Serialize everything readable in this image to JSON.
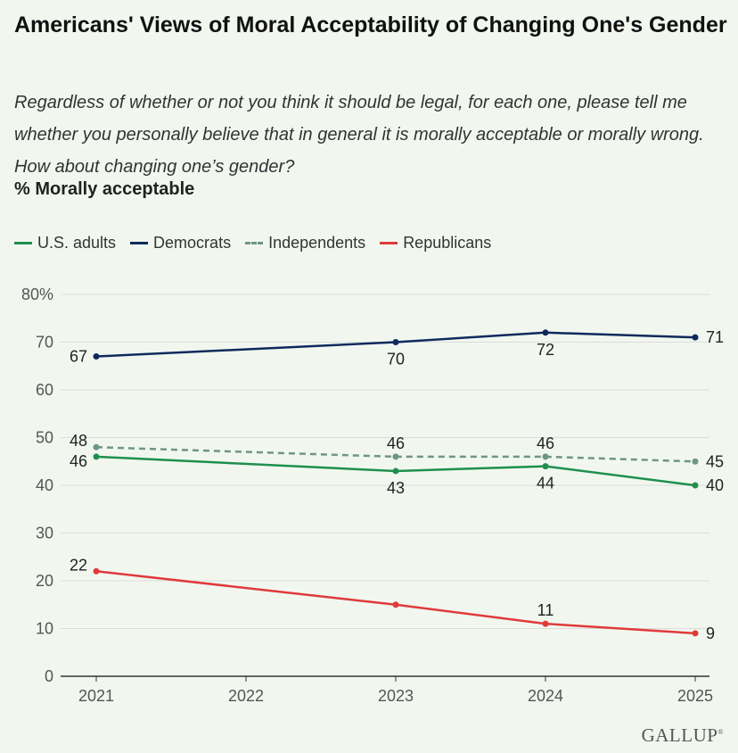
{
  "header": {
    "title": "Americans' Views of Moral Acceptability of Changing One's Gender",
    "subtitle": "Regardless of whether or not you think it should be legal, for each one, please tell me whether you personally believe that in general it is morally acceptable or morally wrong. How about changing one’s gender?",
    "measure": "% Morally acceptable"
  },
  "brand": "GALLUP",
  "colors": {
    "us_adults": "#1f8f4e",
    "democrats": "#0f2a5c",
    "independents": "#6f9586",
    "republicans": "#e03a3a",
    "grid": "#dcdcdc",
    "axis": "#333333"
  },
  "chart_data": {
    "type": "line",
    "title": "Americans' Views of Moral Acceptability of Changing One's Gender",
    "ylabel": "% Morally acceptable",
    "xlabel": "",
    "x": [
      2021,
      2022,
      2023,
      2024,
      2025
    ],
    "x_tick_labels": [
      "2021",
      "2022",
      "2023",
      "2024",
      "2025"
    ],
    "ylim": [
      0,
      80
    ],
    "y_ticks": [
      0,
      10,
      20,
      30,
      40,
      50,
      60,
      70,
      80
    ],
    "y_tick_labels": [
      "0",
      "10",
      "20",
      "30",
      "40",
      "50",
      "60",
      "70",
      "80%"
    ],
    "grid": true,
    "legend_position": "top-left",
    "series": [
      {
        "key": "us_adults",
        "name": "U.S. adults",
        "style": "solid",
        "points": [
          {
            "x": 2021,
            "y": 46
          },
          {
            "x": 2023,
            "y": 43
          },
          {
            "x": 2024,
            "y": 44
          },
          {
            "x": 2025,
            "y": 40
          }
        ]
      },
      {
        "key": "democrats",
        "name": "Democrats",
        "style": "solid",
        "points": [
          {
            "x": 2021,
            "y": 67
          },
          {
            "x": 2023,
            "y": 70
          },
          {
            "x": 2024,
            "y": 72
          },
          {
            "x": 2025,
            "y": 71
          }
        ]
      },
      {
        "key": "independents",
        "name": "Independents",
        "style": "dashed",
        "points": [
          {
            "x": 2021,
            "y": 48
          },
          {
            "x": 2023,
            "y": 46
          },
          {
            "x": 2024,
            "y": 46
          },
          {
            "x": 2025,
            "y": 45
          }
        ]
      },
      {
        "key": "republicans",
        "name": "Republicans",
        "style": "solid",
        "points": [
          {
            "x": 2021,
            "y": 22
          },
          {
            "x": 2023,
            "y": 15
          },
          {
            "x": 2024,
            "y": 11
          },
          {
            "x": 2025,
            "y": 9
          }
        ]
      }
    ],
    "data_labels": [
      {
        "series": "democrats",
        "x": 2021,
        "text": "67"
      },
      {
        "series": "democrats",
        "x": 2023,
        "text": "70"
      },
      {
        "series": "democrats",
        "x": 2024,
        "text": "72"
      },
      {
        "series": "democrats",
        "x": 2025,
        "text": "71"
      },
      {
        "series": "independents",
        "x": 2021,
        "text": "48"
      },
      {
        "series": "independents",
        "x": 2023,
        "text": "46"
      },
      {
        "series": "independents",
        "x": 2024,
        "text": "46"
      },
      {
        "series": "independents",
        "x": 2025,
        "text": "45"
      },
      {
        "series": "us_adults",
        "x": 2021,
        "text": "46"
      },
      {
        "series": "us_adults",
        "x": 2023,
        "text": "43"
      },
      {
        "series": "us_adults",
        "x": 2024,
        "text": "44"
      },
      {
        "series": "us_adults",
        "x": 2025,
        "text": "40"
      },
      {
        "series": "republicans",
        "x": 2021,
        "text": "22"
      },
      {
        "series": "republicans",
        "x": 2024,
        "text": "11"
      },
      {
        "series": "republicans",
        "x": 2025,
        "text": "9"
      }
    ]
  }
}
